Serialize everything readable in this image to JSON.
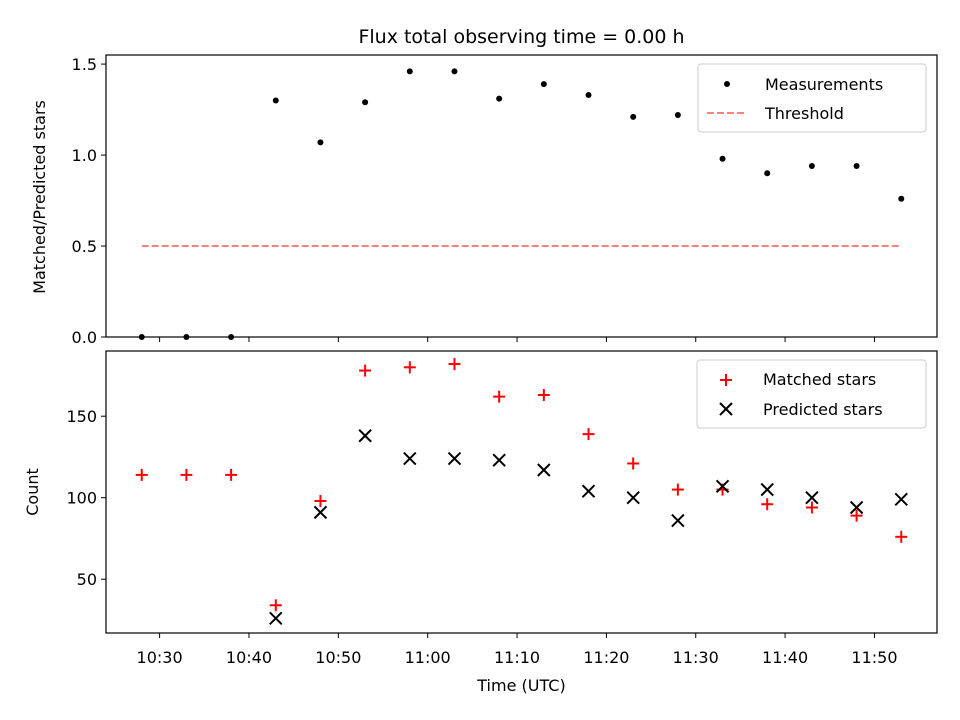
{
  "chart_data": {
    "title": "Flux total observing time = 0.00 h",
    "xlabel": "Time (UTC)",
    "x_ticks": [
      "10:30",
      "10:40",
      "10:50",
      "11:00",
      "11:10",
      "11:20",
      "11:30",
      "11:40",
      "11:50"
    ],
    "x_times": [
      "10:28",
      "10:33",
      "10:38",
      "10:43",
      "10:48",
      "10:53",
      "10:58",
      "11:03",
      "11:08",
      "11:13",
      "11:18",
      "11:23",
      "11:28",
      "11:33",
      "11:38",
      "11:43",
      "11:48",
      "11:53"
    ],
    "panels": [
      {
        "type": "scatter",
        "ylabel": "Matched/Predicted stars",
        "ylim": [
          0,
          1.55
        ],
        "y_ticks": [
          "0.0",
          "0.5",
          "1.0",
          "1.5"
        ],
        "legend_position": "top-right",
        "series": [
          {
            "name": "Measurements",
            "marker": "dot",
            "color": "#000000",
            "values": [
              0.0,
              0.0,
              0.0,
              1.3,
              1.07,
              1.29,
              1.46,
              1.46,
              1.31,
              1.39,
              1.33,
              1.21,
              1.22,
              0.98,
              0.9,
              0.94,
              0.94,
              0.76
            ]
          },
          {
            "name": "Threshold",
            "marker": "dashed-line",
            "color": "#ff7f7f",
            "x_range": [
              "10:28",
              "11:53"
            ],
            "value": 0.5
          }
        ]
      },
      {
        "type": "scatter",
        "ylabel": "Count",
        "ylim": [
          17,
          190
        ],
        "y_ticks": [
          "50",
          "100",
          "150"
        ],
        "legend_position": "top-right",
        "series": [
          {
            "name": "Matched stars",
            "marker": "plus",
            "color": "#ff0000",
            "values": [
              114,
              114,
              114,
              34,
              98,
              178,
              180,
              182,
              162,
              163,
              139,
              121,
              105,
              105,
              96,
              94,
              89,
              76
            ]
          },
          {
            "name": "Predicted stars",
            "marker": "x",
            "color": "#000000",
            "values": [
              null,
              null,
              null,
              26,
              91,
              138,
              124,
              124,
              123,
              117,
              104,
              100,
              86,
              107,
              105,
              100,
              94,
              99
            ]
          }
        ]
      }
    ]
  }
}
